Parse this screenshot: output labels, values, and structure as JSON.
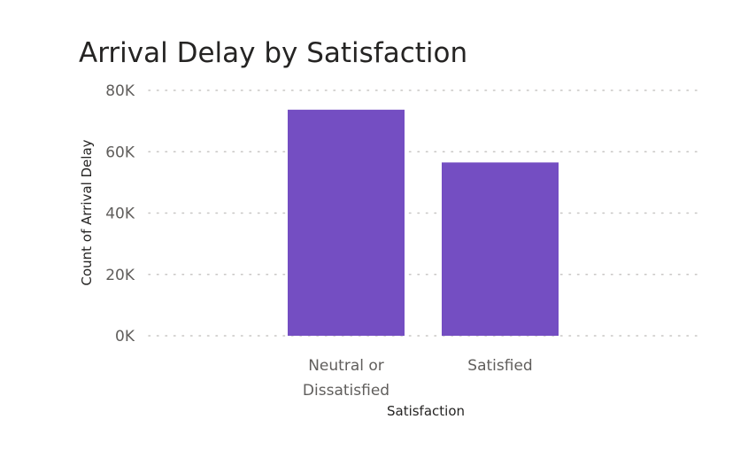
{
  "chart_data": {
    "type": "bar",
    "title": "Arrival Delay by Satisfaction",
    "xlabel": "Satisfaction",
    "ylabel": "Count of Arrival Delay",
    "categories": [
      {
        "lines": [
          "Neutral or",
          "Dissatisfied"
        ]
      },
      {
        "lines": [
          "Satisfied"
        ]
      }
    ],
    "values": [
      73700,
      56500
    ],
    "ylim": [
      0,
      80000
    ],
    "yticks": [
      {
        "value": 0,
        "label": "0K"
      },
      {
        "value": 20000,
        "label": "20K"
      },
      {
        "value": 40000,
        "label": "40K"
      },
      {
        "value": 60000,
        "label": "60K"
      },
      {
        "value": 80000,
        "label": "80K"
      }
    ],
    "bar_color": "#744EC2",
    "grid": true,
    "legend": "none"
  }
}
